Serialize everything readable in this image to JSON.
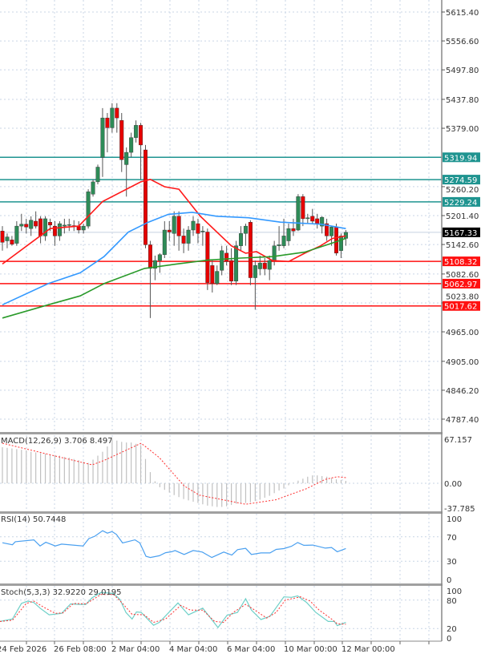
{
  "chart_data": [
    {
      "type": "candlestick",
      "panel": "price",
      "ohlc_fields": [
        "open",
        "high",
        "low",
        "close"
      ],
      "candles": [
        [
          5170,
          5180,
          5130,
          5147
        ],
        [
          5150,
          5165,
          5135,
          5158
        ],
        [
          5152,
          5160,
          5140,
          5143
        ],
        [
          5145,
          5190,
          5140,
          5180
        ],
        [
          5180,
          5205,
          5170,
          5184
        ],
        [
          5184,
          5195,
          5165,
          5178
        ],
        [
          5175,
          5200,
          5160,
          5192
        ],
        [
          5190,
          5210,
          5175,
          5180
        ],
        [
          5195,
          5200,
          5145,
          5160
        ],
        [
          5160,
          5200,
          5150,
          5195
        ],
        [
          5188,
          5195,
          5170,
          5182
        ],
        [
          5180,
          5190,
          5140,
          5160
        ],
        [
          5160,
          5190,
          5150,
          5185
        ],
        [
          5180,
          5195,
          5165,
          5182
        ],
        [
          5182,
          5195,
          5170,
          5183
        ],
        [
          5181,
          5192,
          5170,
          5180
        ],
        [
          5180,
          5190,
          5165,
          5172
        ],
        [
          5172,
          5185,
          5165,
          5180
        ],
        [
          5180,
          5255,
          5175,
          5250
        ],
        [
          5245,
          5275,
          5240,
          5270
        ],
        [
          5270,
          5305,
          5265,
          5300
        ],
        [
          5320,
          5420,
          5280,
          5400
        ],
        [
          5400,
          5410,
          5330,
          5380
        ],
        [
          5380,
          5430,
          5370,
          5420
        ],
        [
          5420,
          5430,
          5370,
          5400
        ],
        [
          5395,
          5410,
          5290,
          5315
        ],
        [
          5305,
          5340,
          5240,
          5330
        ],
        [
          5330,
          5370,
          5320,
          5360
        ],
        [
          5360,
          5395,
          5350,
          5385
        ],
        [
          5385,
          5390,
          5275,
          5345
        ],
        [
          5335,
          5345,
          5135,
          5142
        ],
        [
          5142,
          5150,
          4993,
          5094
        ],
        [
          5094,
          5120,
          5070,
          5110
        ],
        [
          5110,
          5125,
          5085,
          5122
        ],
        [
          5122,
          5190,
          5115,
          5172
        ],
        [
          5172,
          5190,
          5150,
          5168
        ],
        [
          5165,
          5210,
          5140,
          5200
        ],
        [
          5200,
          5210,
          5130,
          5160
        ],
        [
          5160,
          5175,
          5125,
          5145
        ],
        [
          5145,
          5180,
          5130,
          5172
        ],
        [
          5172,
          5200,
          5160,
          5190
        ],
        [
          5185,
          5195,
          5145,
          5165
        ],
        [
          5170,
          5180,
          5140,
          5170
        ],
        [
          5168,
          5175,
          5050,
          5065
        ],
        [
          5100,
          5110,
          5045,
          5063
        ],
        [
          5063,
          5100,
          5060,
          5088
        ],
        [
          5090,
          5140,
          5080,
          5130
        ],
        [
          5125,
          5140,
          5100,
          5108
        ],
        [
          5110,
          5135,
          5060,
          5068
        ],
        [
          5068,
          5150,
          5060,
          5140
        ],
        [
          5140,
          5180,
          5130,
          5165
        ],
        [
          5165,
          5185,
          5140,
          5180
        ],
        [
          5188,
          5192,
          5060,
          5075
        ],
        [
          5075,
          5110,
          5010,
          5100
        ],
        [
          5093,
          5120,
          5080,
          5105
        ],
        [
          5105,
          5115,
          5080,
          5093
        ],
        [
          5092,
          5120,
          5070,
          5110
        ],
        [
          5110,
          5150,
          5100,
          5140
        ],
        [
          5140,
          5180,
          5130,
          5142
        ],
        [
          5140,
          5195,
          5135,
          5160
        ],
        [
          5150,
          5185,
          5140,
          5175
        ],
        [
          5175,
          5195,
          5160,
          5170
        ],
        [
          5172,
          5245,
          5170,
          5240
        ],
        [
          5240,
          5245,
          5180,
          5195
        ],
        [
          5195,
          5205,
          5185,
          5197
        ],
        [
          5200,
          5215,
          5185,
          5190
        ],
        [
          5195,
          5205,
          5175,
          5185
        ],
        [
          5180,
          5200,
          5165,
          5198
        ],
        [
          5185,
          5195,
          5150,
          5160
        ],
        [
          5160,
          5180,
          5140,
          5178
        ],
        [
          5178,
          5185,
          5120,
          5125
        ],
        [
          5130,
          5165,
          5115,
          5160
        ],
        [
          5155,
          5172,
          5140,
          5167.33
        ]
      ],
      "moving_averages": [
        {
          "color": "#ff1a1a",
          "points": [
            [
              0,
              5103
            ],
            [
              10,
              5175
            ],
            [
              16,
              5180
            ],
            [
              21,
              5230
            ],
            [
              29,
              5270
            ],
            [
              31,
              5275
            ],
            [
              34,
              5260
            ],
            [
              37,
              5255
            ],
            [
              41.5,
              5200
            ],
            [
              48,
              5140
            ],
            [
              51,
              5125
            ],
            [
              53.3,
              5128
            ],
            [
              56.6,
              5110
            ],
            [
              60,
              5108
            ],
            [
              63.4,
              5125
            ],
            [
              66.7,
              5140
            ],
            [
              69.2,
              5155
            ],
            [
              72,
              5160
            ]
          ]
        },
        {
          "color": "#3399ff",
          "points": [
            [
              0,
              5020
            ],
            [
              9.6,
              5063
            ],
            [
              16.3,
              5085
            ],
            [
              21.3,
              5118
            ],
            [
              26.4,
              5168
            ],
            [
              30.6,
              5188
            ],
            [
              34.8,
              5204
            ],
            [
              39.8,
              5208
            ],
            [
              44.9,
              5200
            ],
            [
              51.6,
              5197
            ],
            [
              58.3,
              5188
            ],
            [
              66.7,
              5184
            ],
            [
              72,
              5175
            ]
          ]
        },
        {
          "color": "#2a9a2a",
          "points": [
            [
              0,
              4993
            ],
            [
              9.6,
              5020
            ],
            [
              16.3,
              5038
            ],
            [
              21.3,
              5063
            ],
            [
              29.8,
              5094
            ],
            [
              36.5,
              5103
            ],
            [
              43.2,
              5111
            ],
            [
              49.9,
              5115
            ],
            [
              56.6,
              5118
            ],
            [
              63.4,
              5127
            ],
            [
              68.4,
              5143
            ],
            [
              72,
              5155
            ]
          ]
        }
      ],
      "ylim": [
        4787.4,
        5615.4
      ],
      "y_ticks": [
        "5615.40",
        "5556.60",
        "5497.80",
        "5437.80",
        "5379.00",
        "5260.20",
        "5201.40",
        "5142.60",
        "5082.60",
        "5023.80",
        "4965.00",
        "4905.00",
        "4846.20",
        "4787.40"
      ],
      "levels": [
        {
          "value": 5319.94,
          "label": "5319.94",
          "color": "#1f9490"
        },
        {
          "value": 5274.59,
          "label": "5274.59",
          "color": "#1f9490"
        },
        {
          "value": 5229.24,
          "label": "5229.24",
          "color": "#1f9490"
        },
        {
          "value": 5108.32,
          "label": "5108.32",
          "color": "#ff1010"
        },
        {
          "value": 5062.97,
          "label": "5062.97",
          "color": "#ff1010"
        },
        {
          "value": 5017.62,
          "label": "5017.62",
          "color": "#ff1010"
        }
      ],
      "current_price": {
        "value": 5167.33,
        "label": "5167.33",
        "color": "#000000"
      },
      "grid": true,
      "up_color": "#2e8b57",
      "down_color": "#e60000"
    },
    {
      "type": "bar",
      "panel": "macd",
      "title": "MACD(12,26,9) 3.706 8.497",
      "histogram": [
        55,
        54,
        53,
        52,
        51,
        50,
        48,
        47,
        46,
        45,
        44,
        43,
        42,
        40,
        39,
        37,
        35,
        33,
        31,
        36,
        42,
        48,
        56,
        67,
        65,
        63,
        62,
        62,
        60,
        58,
        37,
        17,
        3,
        -6,
        -10,
        -14,
        -18,
        -21,
        -24,
        -26,
        -28,
        -30,
        -32,
        -34,
        -35,
        -36,
        -36,
        -35,
        -33,
        -31,
        -30,
        -30,
        -29,
        -27,
        -25,
        -22,
        -19,
        -15,
        -11,
        -8,
        -3,
        1,
        4,
        7,
        10,
        12,
        12,
        11,
        10,
        8,
        6,
        5,
        3.706
      ],
      "signal": [
        [
          0,
          61
        ],
        [
          9.1,
          45
        ],
        [
          18.8,
          28
        ],
        [
          21.4,
          35
        ],
        [
          29.1,
          61
        ],
        [
          32.9,
          39
        ],
        [
          38.1,
          -4
        ],
        [
          41.3,
          -18
        ],
        [
          51,
          -32
        ],
        [
          57.4,
          -25
        ],
        [
          63.8,
          -8
        ],
        [
          67.7,
          6
        ],
        [
          70.2,
          10
        ],
        [
          72,
          8.497
        ]
      ],
      "ylim": [
        -37.785,
        67.157
      ],
      "y_ticks": [
        "67.157",
        "0.00",
        "-37.785"
      ],
      "bar_color": "#c0c0c0",
      "signal_color": "#ff3030"
    },
    {
      "type": "line",
      "panel": "rsi",
      "title": "RSI(14) 50.7448",
      "points": [
        [
          0,
          60.3
        ],
        [
          2.1,
          57
        ],
        [
          2.7,
          62
        ],
        [
          6.6,
          65
        ],
        [
          7.9,
          55
        ],
        [
          9.1,
          61
        ],
        [
          11.1,
          55
        ],
        [
          12.4,
          58
        ],
        [
          16.9,
          55
        ],
        [
          18.1,
          67
        ],
        [
          19.4,
          71
        ],
        [
          21,
          80
        ],
        [
          22,
          76
        ],
        [
          23,
          78.5
        ],
        [
          23.9,
          74
        ],
        [
          25.2,
          60
        ],
        [
          27.8,
          65
        ],
        [
          28.8,
          60
        ],
        [
          30.1,
          38
        ],
        [
          31,
          36
        ],
        [
          32.9,
          39
        ],
        [
          34.2,
          44
        ],
        [
          35.5,
          45.5
        ],
        [
          36.2,
          47.5
        ],
        [
          38.1,
          41
        ],
        [
          40,
          47.5
        ],
        [
          41.9,
          45
        ],
        [
          43.9,
          36
        ],
        [
          46.4,
          45
        ],
        [
          48.1,
          40
        ],
        [
          49.3,
          49
        ],
        [
          51,
          51
        ],
        [
          52.2,
          41
        ],
        [
          54.2,
          43.6
        ],
        [
          56.1,
          43.6
        ],
        [
          57.4,
          49.4
        ],
        [
          59,
          50.6
        ],
        [
          60.6,
          54.5
        ],
        [
          61.9,
          60.7
        ],
        [
          63.2,
          56
        ],
        [
          65.1,
          56.4
        ],
        [
          67.7,
          51.4
        ],
        [
          69,
          52.5
        ],
        [
          70.2,
          45.5
        ],
        [
          72,
          50.7448
        ]
      ],
      "ylim": [
        0,
        100
      ],
      "y_ticks": [
        "100",
        "70",
        "30",
        "0"
      ],
      "color": "#4aa0f0"
    },
    {
      "type": "line",
      "panel": "stochastic",
      "title": "Stoch(5,3,3) 32.9220 29.0195",
      "main": [
        [
          -0.5,
          35
        ],
        [
          2.1,
          40
        ],
        [
          4,
          73
        ],
        [
          5.3,
          78
        ],
        [
          6.6,
          75
        ],
        [
          7.9,
          63
        ],
        [
          9.8,
          49
        ],
        [
          12.4,
          52
        ],
        [
          14.3,
          72
        ],
        [
          16.2,
          71
        ],
        [
          17.5,
          71
        ],
        [
          18.8,
          85
        ],
        [
          20.7,
          96.5
        ],
        [
          23.3,
          94
        ],
        [
          24.6,
          82
        ],
        [
          25.9,
          54
        ],
        [
          27.2,
          40
        ],
        [
          28.1,
          55
        ],
        [
          29.1,
          54
        ],
        [
          31.7,
          27
        ],
        [
          32.9,
          33
        ],
        [
          34.9,
          54
        ],
        [
          36.8,
          74
        ],
        [
          39,
          49
        ],
        [
          42,
          63
        ],
        [
          45.2,
          22
        ],
        [
          47.1,
          48
        ],
        [
          49.3,
          54
        ],
        [
          51,
          83
        ],
        [
          52.2,
          59
        ],
        [
          54.2,
          39
        ],
        [
          56.1,
          46
        ],
        [
          59,
          87
        ],
        [
          60.6,
          86
        ],
        [
          61.9,
          89
        ],
        [
          63.8,
          75
        ],
        [
          65.7,
          54
        ],
        [
          68.3,
          35
        ],
        [
          69.6,
          35
        ],
        [
          70.2,
          26
        ],
        [
          72,
          32.922
        ]
      ],
      "signal": [
        [
          -0.5,
          35
        ],
        [
          2.1,
          37.5
        ],
        [
          5,
          73
        ],
        [
          6.6,
          78
        ],
        [
          8.5,
          66
        ],
        [
          11.1,
          52
        ],
        [
          12.7,
          53
        ],
        [
          14.9,
          73
        ],
        [
          17.5,
          72
        ],
        [
          20.7,
          92
        ],
        [
          23.3,
          92
        ],
        [
          25.2,
          73
        ],
        [
          27.2,
          50
        ],
        [
          29.7,
          49
        ],
        [
          31.7,
          33
        ],
        [
          34.2,
          40
        ],
        [
          37.4,
          69
        ],
        [
          39.4,
          59
        ],
        [
          42,
          59
        ],
        [
          44.5,
          35
        ],
        [
          46.4,
          33
        ],
        [
          48.4,
          54
        ],
        [
          51,
          71
        ],
        [
          52.9,
          59
        ],
        [
          55.4,
          42
        ],
        [
          57.4,
          54
        ],
        [
          59.3,
          80
        ],
        [
          62.5,
          87
        ],
        [
          64.5,
          78
        ],
        [
          66.4,
          59
        ],
        [
          69,
          40
        ],
        [
          70.2,
          30
        ],
        [
          72,
          29.0195
        ]
      ],
      "ylim": [
        0,
        100
      ],
      "y_ticks": [
        "100",
        "80",
        "20",
        "0"
      ],
      "main_color": "#6fd0c8",
      "signal_color": "#ff3030"
    }
  ],
  "time_axis": {
    "labels": [
      "24 Feb 2026",
      "26 Feb 08:00",
      "2 Mar 04:00",
      "4 Mar 04:00",
      "6 Mar 04:00",
      "10 Mar 00:00",
      "12 Mar 00:00"
    ]
  }
}
